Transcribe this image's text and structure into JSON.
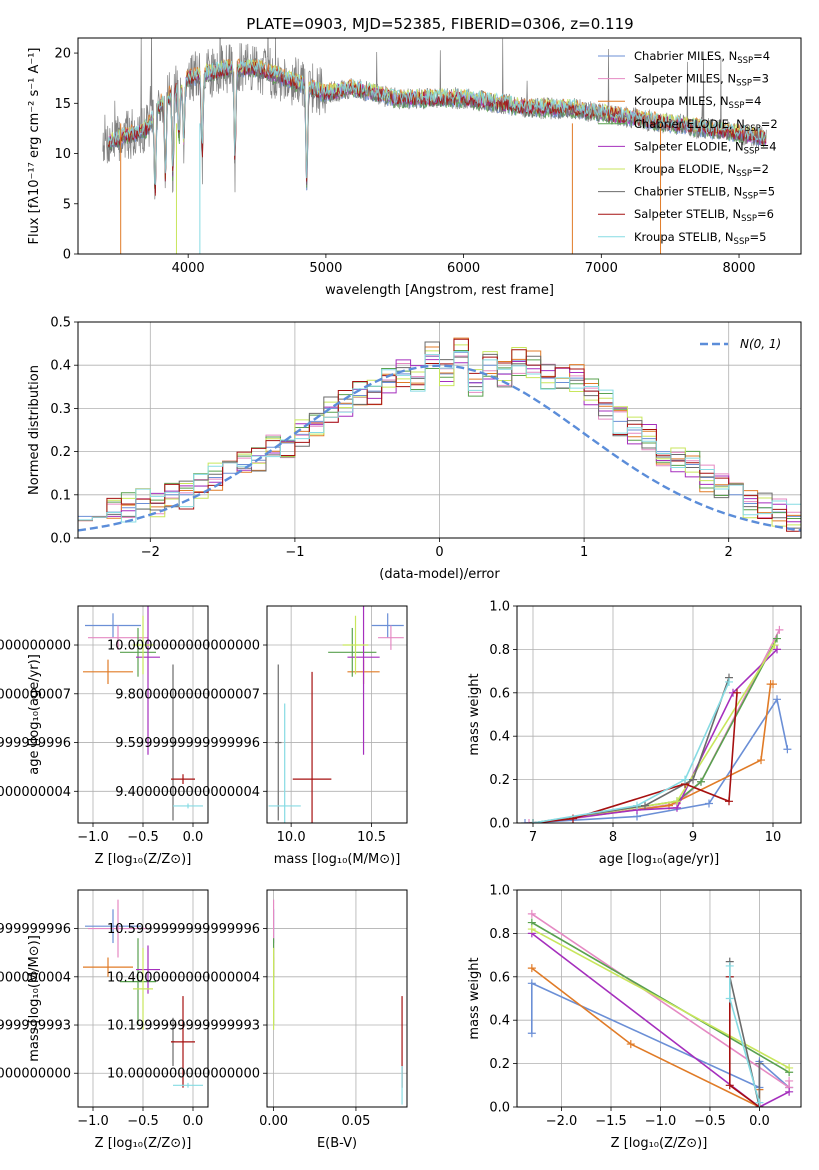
{
  "figure_title": "PLATE=0903, MJD=52385, FIBERID=0306, z=0.119",
  "model_colors": [
    "#6b8fd6",
    "#e589c3",
    "#e07b27",
    "#59a14f",
    "#a52fbd",
    "#c8e65c",
    "#6b6b6b",
    "#a61010",
    "#86dbe3"
  ],
  "chart_data": [
    {
      "id": "spectrum",
      "type": "line",
      "xlabel": "wavelength [Angstrom, rest frame]",
      "ylabel": "Flux [fλ10⁻¹⁷ erg cm⁻² s⁻¹ A⁻¹]",
      "xlim": [
        3200,
        8450
      ],
      "ylim": [
        0,
        21.5
      ],
      "x_ticks": [
        4000,
        5000,
        6000,
        7000,
        8000
      ],
      "y_ticks": [
        0,
        5,
        10,
        15,
        20
      ],
      "legend": "top-right",
      "continuum": [
        [
          3400,
          11.0
        ],
        [
          3700,
          12.5
        ],
        [
          3800,
          15.0
        ],
        [
          4000,
          17.5
        ],
        [
          4150,
          18.0
        ],
        [
          4300,
          18.5
        ],
        [
          4500,
          18.5
        ],
        [
          4700,
          17.5
        ],
        [
          5000,
          16.0
        ],
        [
          5200,
          16.5
        ],
        [
          5500,
          15.5
        ],
        [
          6000,
          15.5
        ],
        [
          6500,
          14.5
        ],
        [
          6800,
          14.5
        ],
        [
          7000,
          14.0
        ],
        [
          7500,
          13.0
        ],
        [
          8000,
          12.0
        ],
        [
          8200,
          11.5
        ]
      ],
      "data_range": [
        3380,
        8200
      ],
      "absorption_features": [
        [
          3933,
          6.0
        ],
        [
          3968,
          6.5
        ],
        [
          4102,
          9.0
        ],
        [
          4340,
          10.0
        ],
        [
          4861,
          11.0
        ],
        [
          3760,
          9.0
        ],
        [
          3835,
          8.5
        ],
        [
          3889,
          9.0
        ]
      ],
      "series": [
        {
          "name": "Chabrier MILES, N_SSP=4",
          "label_main": "Chabrier MILES, N",
          "label_sub": "SSP",
          "label_tail": "=4"
        },
        {
          "name": "Salpeter MILES, N_SSP=3",
          "label_main": "Salpeter MILES, N",
          "label_sub": "SSP",
          "label_tail": "=3"
        },
        {
          "name": "Kroupa MILES, N_SSP=4",
          "label_main": "Kroupa MILES, N",
          "label_sub": "SSP",
          "label_tail": "=4"
        },
        {
          "name": "Chabrier ELODIE, N_SSP=2",
          "label_main": "Chabrier ELODIE, N",
          "label_sub": "SSP",
          "label_tail": "=2"
        },
        {
          "name": "Salpeter ELODIE, N_SSP=4",
          "label_main": "Salpeter ELODIE, N",
          "label_sub": "SSP",
          "label_tail": "=4"
        },
        {
          "name": "Kroupa ELODIE, N_SSP=2",
          "label_main": "Kroupa ELODIE, N",
          "label_sub": "SSP",
          "label_tail": "=2"
        },
        {
          "name": "Chabrier STELIB, N_SSP=5",
          "label_main": "Chabrier STELIB, N",
          "label_sub": "SSP",
          "label_tail": "=5"
        },
        {
          "name": "Salpeter STELIB, N_SSP=6",
          "label_main": "Salpeter STELIB, N",
          "label_sub": "SSP",
          "label_tail": "=6"
        },
        {
          "name": "Kroupa STELIB, N_SSP=5",
          "label_main": "Kroupa STELIB, N",
          "label_sub": "SSP",
          "label_tail": "=5"
        }
      ]
    },
    {
      "id": "residuals",
      "type": "line",
      "xlabel": "(data-model)/error",
      "ylabel": "Normed distribution",
      "xlim": [
        -2.5,
        2.5
      ],
      "ylim": [
        0,
        0.5
      ],
      "x_ticks": [
        -2,
        -1,
        0,
        1,
        2
      ],
      "y_ticks": [
        0.0,
        0.1,
        0.2,
        0.3,
        0.4,
        0.5
      ],
      "grid": true,
      "legend": "top-right",
      "gaussian_label": "N(0, 1)",
      "bin_width": 0.1,
      "series": [
        {
          "name": "Chabrier MILES",
          "values": [
            0.05,
            0.05,
            0.06,
            0.07,
            0.08,
            0.08,
            0.1,
            0.1,
            0.12,
            0.14,
            0.15,
            0.17,
            0.18,
            0.21,
            0.22,
            0.24,
            0.27,
            0.3,
            0.31,
            0.33,
            0.34,
            0.36,
            0.38,
            0.37,
            0.42,
            0.38,
            0.43,
            0.36,
            0.4,
            0.38,
            0.41,
            0.4,
            0.37,
            0.36,
            0.37,
            0.34,
            0.31,
            0.27,
            0.25,
            0.23,
            0.2,
            0.18,
            0.17,
            0.14,
            0.12,
            0.1,
            0.08,
            0.07,
            0.06,
            0.05
          ]
        }
      ]
    },
    {
      "id": "age-vs-Z",
      "type": "scatter",
      "xlabel": "Z [log₁₀(Z/Z⊙)]",
      "ylabel": "age [log₁₀(age/yr)]",
      "xlim": [
        -1.15,
        0.15
      ],
      "ylim": [
        9.27,
        10.16
      ],
      "x_ticks": [
        -1.0,
        -0.5,
        0.0
      ],
      "y_ticks": [
        9.4,
        9.6,
        9.8,
        10.0
      ],
      "points": [
        {
          "model": 0,
          "x": -0.8,
          "y": 10.08,
          "xerr": 0.28,
          "yerr": 0.05
        },
        {
          "model": 1,
          "x": -0.75,
          "y": 10.03,
          "xerr": 0.3,
          "yerr": 0.05
        },
        {
          "model": 2,
          "x": -0.85,
          "y": 9.89,
          "xerr": 0.25,
          "yerr": 0.05
        },
        {
          "model": 3,
          "x": -0.55,
          "y": 9.97,
          "xerr": 0.18,
          "yerr": 0.1
        },
        {
          "model": 4,
          "x": -0.45,
          "y": 9.95,
          "xerr": 0.12,
          "yerr": 0.4
        },
        {
          "model": 5,
          "x": -0.5,
          "y": 10.0,
          "xerr": 0.1,
          "yerr": 0.12
        },
        {
          "model": 6,
          "x": -0.2,
          "y": 9.6,
          "xerr": 0.02,
          "yerr": 0.32
        },
        {
          "model": 7,
          "x": -0.1,
          "y": 9.45,
          "xerr": 0.12,
          "yerr": 0.02
        },
        {
          "model": 8,
          "x": -0.05,
          "y": 9.34,
          "xerr": 0.15,
          "yerr": 0.01
        }
      ]
    },
    {
      "id": "age-vs-mass",
      "type": "scatter",
      "xlabel": "mass [log₁₀(M/M⊙)]",
      "ylabel": "",
      "xlim": [
        9.85,
        10.72
      ],
      "ylim": [
        9.27,
        10.16
      ],
      "x_ticks": [
        10.0,
        10.5
      ],
      "y_ticks": [
        9.4,
        9.6,
        9.8,
        10.0
      ],
      "points": [
        {
          "model": 0,
          "x": 10.6,
          "y": 10.08,
          "xerr": 0.1,
          "yerr": 0.05
        },
        {
          "model": 1,
          "x": 10.62,
          "y": 10.03,
          "xerr": 0.08,
          "yerr": 0.05
        },
        {
          "model": 2,
          "x": 10.45,
          "y": 9.89,
          "xerr": 0.1,
          "yerr": 0.05
        },
        {
          "model": 3,
          "x": 10.38,
          "y": 9.97,
          "xerr": 0.15,
          "yerr": 0.1
        },
        {
          "model": 4,
          "x": 10.45,
          "y": 9.95,
          "xerr": 0.1,
          "yerr": 0.4
        },
        {
          "model": 5,
          "x": 10.4,
          "y": 10.0,
          "xerr": 0.08,
          "yerr": 0.12
        },
        {
          "model": 6,
          "x": 9.92,
          "y": 9.6,
          "xerr": 0.02,
          "yerr": 0.32
        },
        {
          "model": 7,
          "x": 10.13,
          "y": 9.45,
          "xerr": 0.12,
          "yerr": 0.44
        },
        {
          "model": 8,
          "x": 9.96,
          "y": 9.34,
          "xerr": 0.1,
          "yerr": 0.42
        }
      ]
    },
    {
      "id": "cumulative-mass-vs-age",
      "type": "line",
      "xlabel": "age [log₁₀(age/yr)]",
      "ylabel": "mass weight",
      "xlim": [
        6.8,
        10.35
      ],
      "ylim": [
        0,
        1.0
      ],
      "x_ticks": [
        7,
        8,
        9,
        10
      ],
      "y_ticks": [
        0.0,
        0.2,
        0.4,
        0.6,
        0.8,
        1.0
      ],
      "grid": true,
      "series": [
        {
          "model": 0,
          "x": [
            6.9,
            8.3,
            9.2,
            10.05,
            10.18
          ],
          "y": [
            0.0,
            0.03,
            0.09,
            0.57,
            0.34
          ]
        },
        {
          "model": 1,
          "x": [
            6.95,
            7.5,
            8.8,
            9.1,
            10.08
          ],
          "y": [
            0.0,
            0.02,
            0.09,
            0.19,
            0.89
          ]
        },
        {
          "model": 2,
          "x": [
            7.0,
            8.7,
            9.85,
            9.97,
            10.0
          ],
          "y": [
            0.0,
            0.08,
            0.29,
            0.64,
            0.64
          ]
        },
        {
          "model": 3,
          "x": [
            7.0,
            8.8,
            9.1,
            10.05
          ],
          "y": [
            0.0,
            0.1,
            0.19,
            0.85
          ]
        },
        {
          "model": 4,
          "x": [
            7.0,
            8.3,
            8.8,
            9.5,
            10.05
          ],
          "y": [
            0.0,
            0.06,
            0.07,
            0.6,
            0.8
          ]
        },
        {
          "model": 5,
          "x": [
            7.0,
            8.8,
            10.02
          ],
          "y": [
            0.0,
            0.1,
            0.82
          ]
        },
        {
          "model": 6,
          "x": [
            7.0,
            8.4,
            9.0,
            9.45
          ],
          "y": [
            0.0,
            0.08,
            0.2,
            0.67
          ]
        },
        {
          "model": 7,
          "x": [
            7.0,
            7.5,
            8.9,
            9.45,
            9.55
          ],
          "y": [
            0.0,
            0.02,
            0.18,
            0.1,
            0.6
          ]
        },
        {
          "model": 8,
          "x": [
            7.0,
            8.3,
            8.9,
            9.45
          ],
          "y": [
            0.0,
            0.08,
            0.2,
            0.65
          ]
        }
      ]
    },
    {
      "id": "mass-vs-Z",
      "type": "scatter",
      "xlabel": "Z [log₁₀(Z/Z⊙)]",
      "ylabel": "mass [log₁₀(M/M⊙)]",
      "xlim": [
        -1.15,
        0.15
      ],
      "ylim": [
        9.86,
        10.76
      ],
      "x_ticks": [
        -1.0,
        -0.5,
        0.0
      ],
      "y_ticks": [
        10.0,
        10.2,
        10.4,
        10.6
      ],
      "points": [
        {
          "model": 0,
          "x": -0.8,
          "y": 10.61,
          "xerr": 0.28,
          "yerr": 0.07
        },
        {
          "model": 1,
          "x": -0.75,
          "y": 10.6,
          "xerr": 0.3,
          "yerr": 0.12
        },
        {
          "model": 2,
          "x": -0.85,
          "y": 10.44,
          "xerr": 0.25,
          "yerr": 0.04
        },
        {
          "model": 3,
          "x": -0.55,
          "y": 10.38,
          "xerr": 0.18,
          "yerr": 0.18
        },
        {
          "model": 4,
          "x": -0.45,
          "y": 10.43,
          "xerr": 0.12,
          "yerr": 0.1
        },
        {
          "model": 5,
          "x": -0.5,
          "y": 10.35,
          "xerr": 0.1,
          "yerr": 0.17
        },
        {
          "model": 6,
          "x": -0.2,
          "y": 10.13,
          "xerr": 0.02,
          "yerr": 0.1
        },
        {
          "model": 7,
          "x": -0.1,
          "y": 10.13,
          "xerr": 0.12,
          "yerr": 0.19
        },
        {
          "model": 8,
          "x": -0.05,
          "y": 9.95,
          "xerr": 0.15,
          "yerr": 0.01
        }
      ]
    },
    {
      "id": "mass-vs-ebv",
      "type": "scatter",
      "xlabel": "E(B-V)",
      "ylabel": "",
      "xlim": [
        -0.004,
        0.081
      ],
      "ylim": [
        9.86,
        10.76
      ],
      "x_ticks": [
        0.0,
        0.05
      ],
      "y_ticks": [
        10.0,
        10.2,
        10.4,
        10.6
      ],
      "points": [
        {
          "model": 0,
          "x": 0.0,
          "y": 10.61,
          "xerr": 0.0,
          "yerr": 0.07
        },
        {
          "model": 1,
          "x": 0.0,
          "y": 10.6,
          "xerr": 0.0,
          "yerr": 0.12
        },
        {
          "model": 2,
          "x": 0.0,
          "y": 10.44,
          "xerr": 0.0,
          "yerr": 0.04
        },
        {
          "model": 3,
          "x": 0.0,
          "y": 10.38,
          "xerr": 0.0,
          "yerr": 0.18
        },
        {
          "model": 5,
          "x": 0.0,
          "y": 10.35,
          "xerr": 0.0,
          "yerr": 0.17
        },
        {
          "model": 7,
          "x": 0.078,
          "y": 10.13,
          "xerr": 0.0,
          "yerr": 0.19
        },
        {
          "model": 8,
          "x": 0.078,
          "y": 9.95,
          "xerr": 0.0,
          "yerr": 0.08
        }
      ]
    },
    {
      "id": "cumulative-mass-vs-Z",
      "type": "line",
      "xlabel": "Z [log₁₀(Z/Z⊙)]",
      "ylabel": "mass weight",
      "xlim": [
        -2.45,
        0.42
      ],
      "ylim": [
        0,
        1.0
      ],
      "x_ticks": [
        -2.0,
        -1.5,
        -1.0,
        -0.5,
        0.0
      ],
      "y_ticks": [
        0.0,
        0.2,
        0.4,
        0.6,
        0.8,
        1.0
      ],
      "grid": true,
      "series": [
        {
          "model": 0,
          "x": [
            -2.3,
            -2.3,
            0.0,
            0.0,
            0.3
          ],
          "y": [
            0.34,
            0.57,
            0.09,
            0.21,
            0.09
          ]
        },
        {
          "model": 1,
          "x": [
            -2.3,
            0.3,
            0.3
          ],
          "y": [
            0.89,
            0.09,
            0.12
          ]
        },
        {
          "model": 2,
          "x": [
            -2.3,
            -1.3,
            0.0,
            0.0
          ],
          "y": [
            0.64,
            0.29,
            0.0,
            0.08
          ]
        },
        {
          "model": 3,
          "x": [
            -2.3,
            0.3
          ],
          "y": [
            0.85,
            0.16
          ]
        },
        {
          "model": 4,
          "x": [
            -2.3,
            0.0,
            0.3
          ],
          "y": [
            0.8,
            0.0,
            0.07
          ]
        },
        {
          "model": 5,
          "x": [
            -2.3,
            0.3
          ],
          "y": [
            0.82,
            0.18
          ]
        },
        {
          "model": 6,
          "x": [
            -0.3,
            -0.3,
            0.0,
            0.0
          ],
          "y": [
            0.67,
            0.6,
            0.0,
            0.2
          ]
        },
        {
          "model": 7,
          "x": [
            -0.3,
            -0.3,
            0.0
          ],
          "y": [
            0.6,
            0.1,
            0.0
          ]
        },
        {
          "model": 8,
          "x": [
            -0.3,
            -0.3,
            0.0
          ],
          "y": [
            0.65,
            0.5,
            0.02
          ]
        }
      ]
    }
  ]
}
